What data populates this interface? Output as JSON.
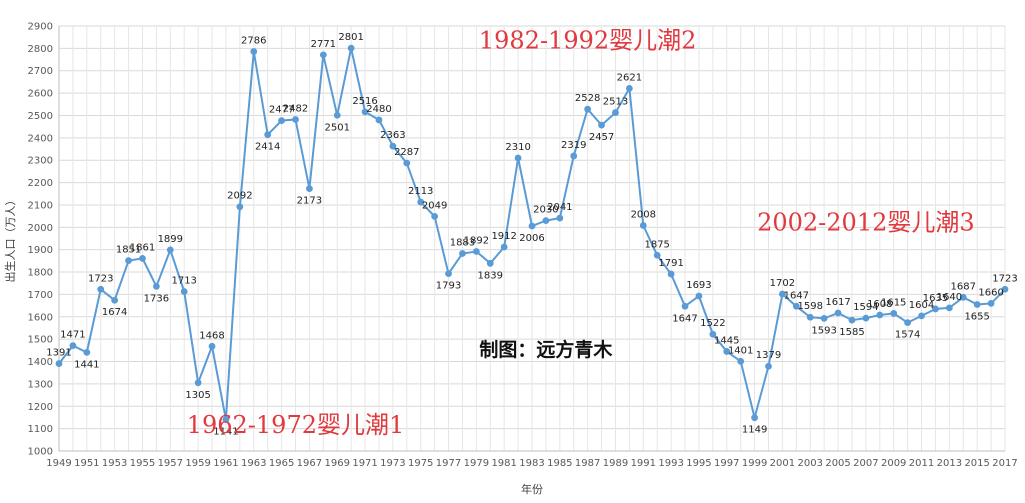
{
  "chart_data": {
    "type": "line",
    "title": "",
    "xlabel": "年份",
    "ylabel": "出生人口（万人）",
    "ylim": [
      1000,
      2900
    ],
    "ytick_step": 100,
    "grid": true,
    "legend": "none",
    "series": [
      {
        "color": "#5b9bd5",
        "x": [
          1949,
          1950,
          1951,
          1952,
          1953,
          1954,
          1955,
          1956,
          1957,
          1958,
          1959,
          1960,
          1961,
          1962,
          1963,
          1964,
          1965,
          1966,
          1967,
          1968,
          1969,
          1970,
          1971,
          1972,
          1973,
          1974,
          1975,
          1976,
          1977,
          1978,
          1979,
          1980,
          1981,
          1982,
          1983,
          1984,
          1985,
          1986,
          1987,
          1988,
          1989,
          1990,
          1991,
          1992,
          1993,
          1994,
          1995,
          1996,
          1997,
          1998,
          1999,
          2000,
          2001,
          2002,
          2003,
          2004,
          2005,
          2006,
          2007,
          2008,
          2009,
          2010,
          2011,
          2012,
          2013,
          2014,
          2015,
          2016,
          2017
        ],
        "values": [
          1391,
          1471,
          1441,
          1723,
          1674,
          1851,
          1861,
          1736,
          1899,
          1713,
          1305,
          1468,
          1141,
          2092,
          2786,
          2414,
          2477,
          2482,
          2173,
          2771,
          2501,
          2801,
          2516,
          2480,
          2363,
          2287,
          2113,
          2049,
          1793,
          1883,
          1892,
          1839,
          1912,
          2310,
          2006,
          2030,
          2041,
          2319,
          2528,
          2457,
          2513,
          2621,
          2008,
          1875,
          1791,
          1647,
          1693,
          1522,
          1445,
          1401,
          1149,
          1379,
          1702,
          1647,
          1598,
          1593,
          1617,
          1585,
          1594,
          1608,
          1615,
          1574,
          1604,
          1635,
          1640,
          1687,
          1655,
          1660,
          1723
        ]
      }
    ],
    "x_tick_labels": [
      "1949",
      "1951",
      "1953",
      "1955",
      "1957",
      "1959",
      "1961",
      "1963",
      "1965",
      "1967",
      "1969",
      "1971",
      "1973",
      "1975",
      "1977",
      "1979",
      "1981",
      "1983",
      "1985",
      "1987",
      "1989",
      "1991",
      "1993",
      "1995",
      "1997",
      "1999",
      "2001",
      "2003",
      "2005",
      "2007",
      "2009",
      "2011",
      "2013",
      "2015",
      "2017"
    ],
    "annotations": [
      {
        "text": "1962-1972婴儿潮1",
        "x": 1966,
        "y": 1080
      },
      {
        "text": "1982-1992婴儿潮2",
        "x": 1987,
        "y": 2800
      },
      {
        "text": "2002-2012婴儿潮3",
        "x": 2007,
        "y": 1985
      },
      {
        "text": "制图：远方青木",
        "x": 1984,
        "y": 1425
      }
    ],
    "annotation_color": "#e0393e"
  }
}
